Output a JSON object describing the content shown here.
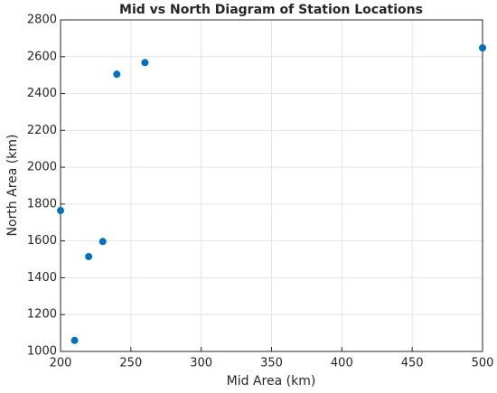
{
  "chart_data": {
    "type": "scatter",
    "title": "Mid vs North Diagram of Station Locations",
    "xlabel": "Mid Area (km)",
    "ylabel": "North Area (km)",
    "x": [
      200,
      210,
      220,
      230,
      240,
      260,
      500
    ],
    "values": [
      1765,
      1060,
      1515,
      1597,
      2505,
      2568,
      2648
    ],
    "color": "#0072bd",
    "xlim": [
      200,
      500
    ],
    "xticks": [
      200,
      250,
      300,
      350,
      400,
      450,
      500
    ],
    "ylim": [
      1000,
      2800
    ],
    "yticks": [
      1000,
      1200,
      1400,
      1600,
      1800,
      2000,
      2200,
      2400,
      2600,
      2800
    ],
    "grid": true
  }
}
